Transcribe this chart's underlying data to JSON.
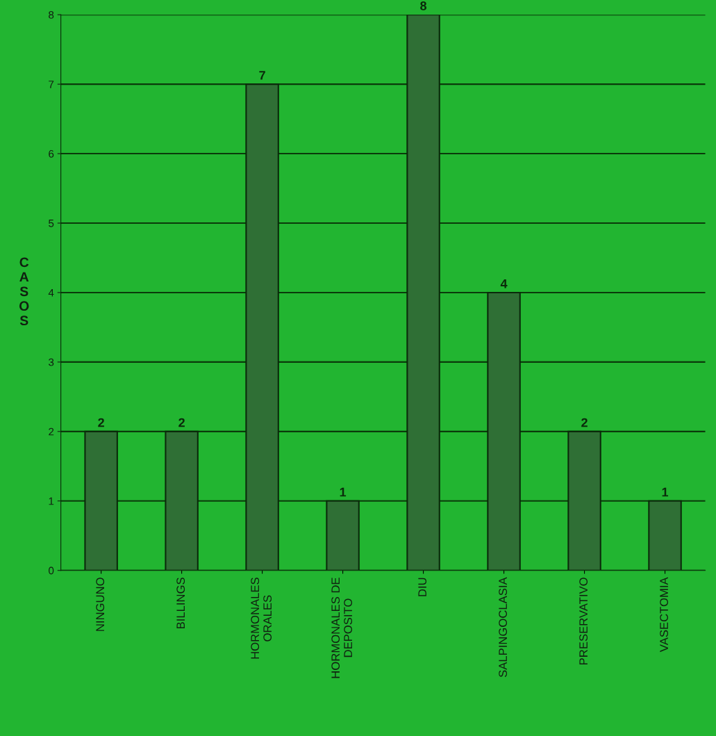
{
  "chart_data": {
    "type": "bar",
    "ylabel": "CASOS",
    "categories": [
      "NINGUNO",
      "BILLINGS",
      "HORMONALES\nORALES",
      "HORMONALES DE\nDEPOSITO",
      "DIU",
      "SALPINGOCLASIA",
      "PRESERVATIVO",
      "VASECTOMIA"
    ],
    "values": [
      2,
      2,
      7,
      1,
      8,
      4,
      2,
      1
    ],
    "color": "#2f6f35",
    "ylim": [
      0,
      8
    ],
    "yticks": [
      0,
      1,
      2,
      3,
      4,
      5,
      6,
      7,
      8
    ],
    "grid": "y",
    "data_labels": true
  }
}
